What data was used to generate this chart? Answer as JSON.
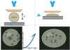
{
  "fig_width": 1.0,
  "fig_height": 0.72,
  "dpi": 100,
  "bg_color": "#e8e8e8",
  "panel_bg": "#f5f5f5",
  "arrow_color": "#22aaee",
  "punch_color": "#e8c8a0",
  "punch_edge": "#c0a070",
  "punch_face_color": "#d4b888",
  "anvil_color": "#909090",
  "anvil_edge": "#606060",
  "base_color": "#a0a0a0",
  "base_edge": "#707070",
  "particle_color": "#c8c0a0",
  "particle_edge": "#a09878",
  "flat_particle_color": "#b8b8a0",
  "separator_color": "#999999",
  "plot_line_color": "#3377bb",
  "plot_bg": "#ffffff",
  "dark_bg": "#1a221a",
  "photo_particle_color": "#888888",
  "photo_particle_edge": "#aaaaaa",
  "label_color": "#333333",
  "white": "#ffffff"
}
